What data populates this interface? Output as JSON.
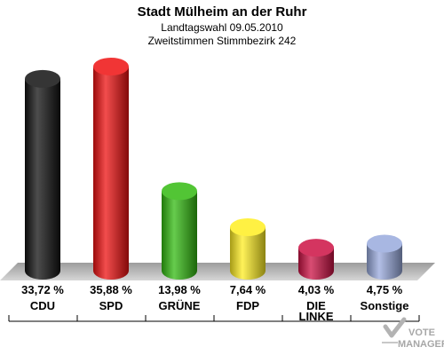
{
  "chart_data": {
    "type": "bar",
    "title": "Stadt Mülheim an der Ruhr",
    "subtitle_1": "Landtagswahl 09.05.2010",
    "subtitle_2": "Zweitstimmen Stimmbezirk 242",
    "categories": [
      "CDU",
      "SPD",
      "GRÜNE",
      "FDP",
      "DIE LINKE",
      "Sonstige"
    ],
    "values": [
      33.72,
      35.88,
      13.98,
      7.64,
      4.03,
      4.75
    ],
    "value_labels": [
      "33,72 %",
      "35,88 %",
      "13,98 %",
      "7,64 %",
      "4,03 %",
      "4,75 %"
    ],
    "colors": [
      "#111111",
      "#ee1111",
      "#33bb11",
      "#ffee22",
      "#cc1144",
      "#99aadd"
    ],
    "grid": false
  },
  "watermark": {
    "line1": "VOTE",
    "line2": "MANAGER"
  }
}
